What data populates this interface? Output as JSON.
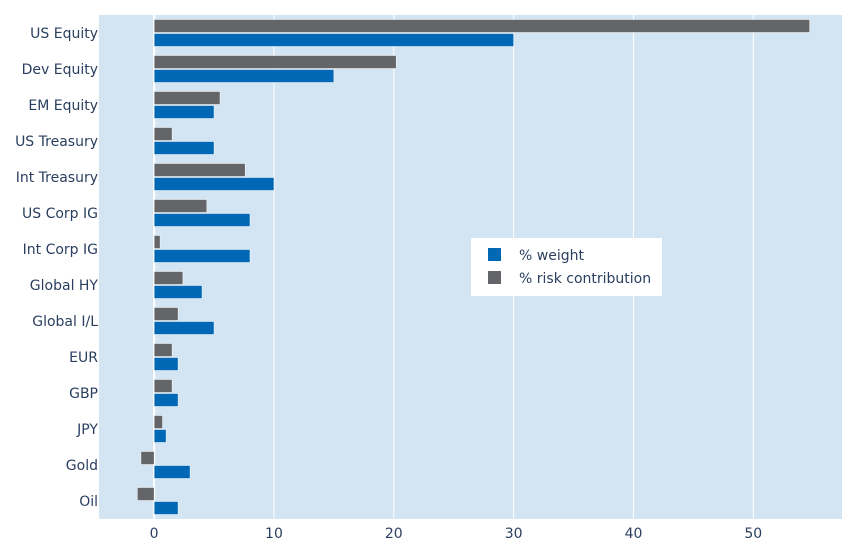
{
  "chart_data": {
    "type": "bar",
    "orientation": "horizontal",
    "categories": [
      "US Equity",
      "Dev Equity",
      "EM Equity",
      "US Treasury",
      "Int Treasury",
      "US Corp IG",
      "Int Corp IG",
      "Global HY",
      "Global I/L",
      "EUR",
      "GBP",
      "JPY",
      "Gold",
      "Oil"
    ],
    "series": [
      {
        "name": "% weight",
        "color": "#0068b5",
        "values": [
          30,
          15,
          5,
          5,
          10,
          8,
          8,
          4,
          5,
          2,
          2,
          1,
          3,
          2
        ]
      },
      {
        "name": "% risk contribution",
        "color": "#636569",
        "values": [
          54.7,
          20.2,
          5.5,
          1.5,
          7.6,
          4.4,
          0.5,
          2.4,
          2.0,
          1.5,
          1.5,
          0.7,
          -1.1,
          -1.4
        ]
      }
    ],
    "xlim": [
      -4.6,
      57.4
    ],
    "xticks": [
      0,
      10,
      20,
      30,
      40,
      50
    ],
    "grid": true,
    "legend_position": "center-right",
    "colors": {
      "plot_background": "#d3e5f2",
      "grid": "#ffffff"
    }
  }
}
